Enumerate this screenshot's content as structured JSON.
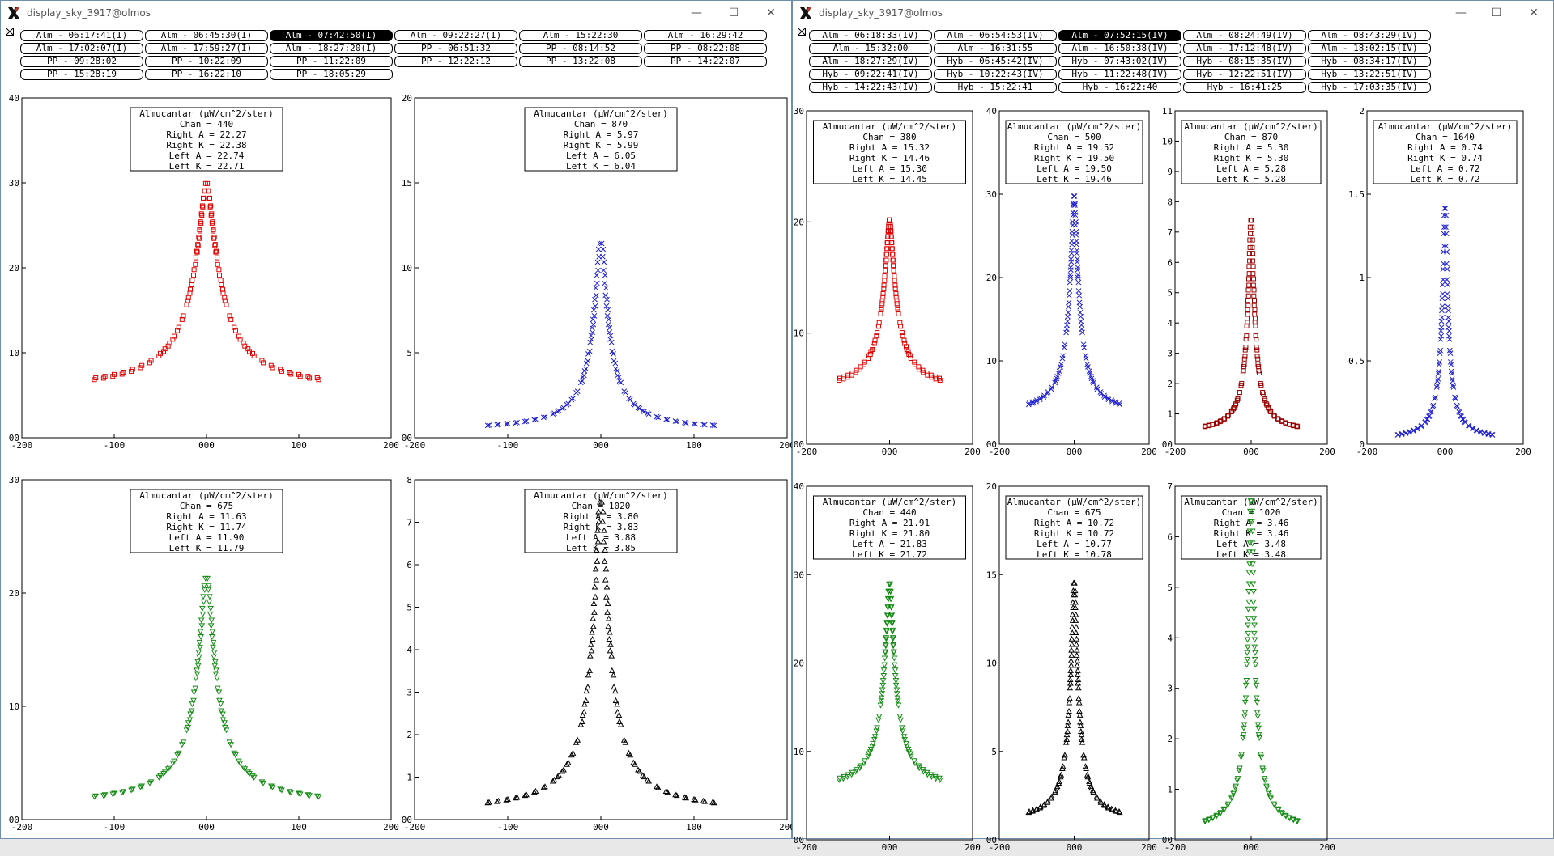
{
  "windows": [
    {
      "title": "display_sky_3917@olmos",
      "button_rows": [
        [
          "Alm - 06:17:41(I)",
          "Alm - 06:45:30(I)",
          "Alm - 07:42:50(I)",
          "Alm - 09:22:27(I)",
          "Alm - 15:22:30",
          "Alm - 16:29:42"
        ],
        [
          "Alm - 17:02:07(I)",
          "Alm - 17:59:27(I)",
          "Alm - 18:27:20(I)",
          "PP - 06:51:32",
          "PP - 08:14:52",
          "PP - 08:22:08"
        ],
        [
          "PP - 09:28:02",
          "PP - 10:22:09",
          "PP - 11:22:09",
          "PP - 12:22:12",
          "PP - 13:22:08",
          "PP - 14:22:07"
        ],
        [
          "PP - 15:28:19",
          "PP - 16:22:10",
          "PP - 18:05:29"
        ]
      ],
      "selected_button": "Alm - 07:42:50(I)",
      "plots": [
        {
          "legend_title": "Almucantar (µW/cm^2/ster)",
          "chan": "Chan = 440",
          "lines": [
            "Right A = 22.27",
            "Right K = 22.38",
            "Left A = 22.74",
            "Left K = 22.71"
          ]
        },
        {
          "legend_title": "Almucantar (µW/cm^2/ster)",
          "chan": "Chan = 870",
          "lines": [
            "Right A = 5.97",
            "Right K = 5.99",
            "Left A = 6.05",
            "Left K = 6.04"
          ]
        },
        {
          "legend_title": "Almucantar (µW/cm^2/ster)",
          "chan": "Chan = 675",
          "lines": [
            "Right A = 11.63",
            "Right K = 11.74",
            "Left A = 11.90",
            "Left K = 11.79"
          ]
        },
        {
          "legend_title": "Almucantar (µW/cm^2/ster)",
          "chan": "Chan = 1020",
          "lines": [
            "Right A = 3.80",
            "Right K = 3.83",
            "Left A = 3.88",
            "Left K = 3.85"
          ]
        }
      ]
    },
    {
      "title": "display_sky_3917@olmos",
      "button_rows": [
        [
          "Alm - 06:18:33(IV)",
          "Alm - 06:54:53(IV)",
          "Alm - 07:52:15(IV)",
          "Alm - 08:24:49(IV)",
          "Alm - 08:43:29(IV)"
        ],
        [
          "Alm - 15:32:00",
          "Alm - 16:31:55",
          "Alm - 16:50:38(IV)",
          "Alm - 17:12:48(IV)",
          "Alm - 18:02:15(IV)"
        ],
        [
          "Alm - 18:27:29(IV)",
          "Hyb - 06:45:42(IV)",
          "Hyb - 07:43:02(IV)",
          "Hyb - 08:15:35(IV)",
          "Hyb - 08:34:17(IV)"
        ],
        [
          "Hyb - 09:22:41(IV)",
          "Hyb - 10:22:43(IV)",
          "Hyb - 11:22:48(IV)",
          "Hyb - 12:22:51(IV)",
          "Hyb - 13:22:51(IV)"
        ],
        [
          "Hyb - 14:22:43(IV)",
          "Hyb - 15:22:41",
          "Hyb - 16:22:40",
          "Hyb - 16:41:25",
          "Hyb - 17:03:35(IV)"
        ]
      ],
      "selected_button": "Alm - 07:52:15(IV)",
      "plots": [
        {
          "legend_title": "Almucantar (µW/cm^2/ster)",
          "chan": "Chan = 380",
          "lines": [
            "Right A = 15.32",
            "Right K = 14.46",
            "Left A = 15.30",
            "Left K = 14.45"
          ]
        },
        {
          "legend_title": "Almucantar (µW/cm^2/ster)",
          "chan": "Chan = 500",
          "lines": [
            "Right A = 19.52",
            "Right K = 19.50",
            "Left A = 19.50",
            "Left K = 19.46"
          ]
        },
        {
          "legend_title": "Almucantar (µW/cm^2/ster)",
          "chan": "Chan = 870",
          "lines": [
            "Right A = 5.30",
            "Right K = 5.30",
            "Left A = 5.28",
            "Left K = 5.28"
          ]
        },
        {
          "legend_title": "Almucantar (µW/cm^2/ster)",
          "chan": "Chan = 1640",
          "lines": [
            "Right A = 0.74",
            "Right K = 0.74",
            "Left A = 0.72",
            "Left K = 0.72"
          ]
        },
        {
          "legend_title": "Almucantar (µW/cm^2/ster)",
          "chan": "Chan = 440",
          "lines": [
            "Right A = 21.91",
            "Right K = 21.80",
            "Left A = 21.83",
            "Left K = 21.72"
          ]
        },
        {
          "legend_title": "Almucantar (µW/cm^2/ster)",
          "chan": "Chan = 675",
          "lines": [
            "Right A = 10.72",
            "Right K = 10.72",
            "Left A = 10.77",
            "Left K = 10.78"
          ]
        },
        {
          "legend_title": "Almucantar (µW/cm^2/ster)",
          "chan": "Chan = 1020",
          "lines": [
            "Right A = 3.46",
            "Right K = 3.46",
            "Left A = 3.48",
            "Left K = 3.48"
          ]
        }
      ]
    }
  ],
  "colors": {
    "red": "#e00000",
    "blue": "#2020d0",
    "green": "#138a13",
    "black": "#000000",
    "darkred": "#990000"
  },
  "chart_data": [
    {
      "type": "scatter",
      "window": 0,
      "xlim": [
        -200,
        200
      ],
      "ylim": [
        0,
        40
      ],
      "xticks": [
        -200,
        -100,
        0,
        100,
        200
      ],
      "xtick_labels": [
        "-200",
        "-100",
        "000",
        "100",
        "200"
      ],
      "yticks": [
        0,
        10,
        20,
        30,
        40
      ],
      "ytick_labels": [
        "00",
        "10",
        "20",
        "30",
        "40"
      ],
      "peak": 30.5,
      "base": 5.5,
      "width": 16,
      "marker": "square",
      "color": "red"
    },
    {
      "type": "scatter",
      "window": 0,
      "xlim": [
        -200,
        200
      ],
      "ylim": [
        0,
        20
      ],
      "xticks": [
        -200,
        -100,
        0,
        100,
        200
      ],
      "xtick_labels": [
        "-200",
        "-100",
        "000",
        "100",
        "200"
      ],
      "yticks": [
        0,
        5,
        10,
        15,
        20
      ],
      "ytick_labels": [
        "00",
        "5",
        "10",
        "15",
        "20"
      ],
      "peak": 12.0,
      "base": 0.4,
      "width": 9,
      "marker": "x",
      "color": "blue"
    },
    {
      "type": "scatter",
      "window": 0,
      "xlim": [
        -200,
        200
      ],
      "ylim": [
        0,
        30
      ],
      "xticks": [
        -200,
        -100,
        0,
        100,
        200
      ],
      "xtick_labels": [
        "-200",
        "-100",
        "000",
        "100",
        "200"
      ],
      "yticks": [
        0,
        10,
        20,
        30
      ],
      "ytick_labels": [
        "00",
        "10",
        "20",
        "30"
      ],
      "peak": 22.0,
      "base": 1.2,
      "width": 12,
      "marker": "tri-down",
      "color": "green"
    },
    {
      "type": "scatter",
      "window": 0,
      "xlim": [
        -200,
        200
      ],
      "ylim": [
        0,
        8
      ],
      "xticks": [
        -200,
        -100,
        0,
        100,
        200
      ],
      "xtick_labels": [
        "-200",
        "-100",
        "000",
        "100",
        "200"
      ],
      "yticks": [
        0,
        1,
        2,
        3,
        4,
        5,
        6,
        7,
        8
      ],
      "ytick_labels": [
        "00",
        "1",
        "2",
        "3",
        "4",
        "5",
        "6",
        "7",
        "8"
      ],
      "peak": 7.8,
      "base": 0.15,
      "width": 10,
      "marker": "tri-up",
      "color": "black"
    },
    {
      "type": "scatter",
      "window": 1,
      "xlim": [
        -200,
        200
      ],
      "ylim": [
        0,
        30
      ],
      "xticks": [
        -200,
        0,
        200
      ],
      "xtick_labels": [
        "-200",
        "000",
        "200"
      ],
      "yticks": [
        0,
        10,
        20,
        30
      ],
      "ytick_labels": [
        "00",
        "10",
        "20",
        "30"
      ],
      "peak": 20.5,
      "base": 4.8,
      "width": 18,
      "marker": "square",
      "color": "red"
    },
    {
      "type": "scatter",
      "window": 1,
      "xlim": [
        -200,
        200
      ],
      "ylim": [
        0,
        40
      ],
      "xticks": [
        -200,
        0,
        200
      ],
      "xtick_labels": [
        "-200",
        "000",
        "200"
      ],
      "yticks": [
        0,
        10,
        20,
        30,
        40
      ],
      "ytick_labels": [
        "00",
        "10",
        "20",
        "30",
        "40"
      ],
      "peak": 30.5,
      "base": 3.5,
      "width": 14,
      "marker": "x",
      "color": "blue"
    },
    {
      "type": "scatter",
      "window": 1,
      "xlim": [
        -200,
        200
      ],
      "ylim": [
        0,
        11
      ],
      "xticks": [
        -200,
        0,
        200
      ],
      "xtick_labels": [
        "-200",
        "000",
        "200"
      ],
      "yticks": [
        0,
        1,
        2,
        3,
        4,
        5,
        6,
        7,
        8,
        9,
        10,
        11
      ],
      "ytick_labels": [
        "00",
        "1",
        "2",
        "3",
        "4",
        "5",
        "6",
        "7",
        "8",
        "9",
        "10",
        "11"
      ],
      "peak": 7.7,
      "base": 0.35,
      "width": 10,
      "marker": "square",
      "color": "darkred"
    },
    {
      "type": "scatter",
      "window": 1,
      "xlim": [
        -200,
        200
      ],
      "ylim": [
        0,
        2
      ],
      "xticks": [
        -200,
        0,
        200
      ],
      "xtick_labels": [
        "-200",
        "000",
        "200"
      ],
      "yticks": [
        0,
        0.5,
        1,
        1.5,
        2
      ],
      "ytick_labels": [
        "0",
        "0.5",
        "1",
        "1.5",
        "2"
      ],
      "peak": 1.5,
      "base": 0.02,
      "width": 8,
      "marker": "x",
      "color": "blue"
    },
    {
      "type": "scatter",
      "window": 1,
      "xlim": [
        -200,
        200
      ],
      "ylim": [
        0,
        40
      ],
      "xticks": [
        -200,
        0,
        200
      ],
      "xtick_labels": [
        "-200",
        "000",
        "200"
      ],
      "yticks": [
        0,
        10,
        20,
        30,
        40
      ],
      "ytick_labels": [
        "00",
        "10",
        "20",
        "30",
        "40"
      ],
      "peak": 29.5,
      "base": 5.5,
      "width": 16,
      "marker": "tri-down",
      "color": "green"
    },
    {
      "type": "scatter",
      "window": 1,
      "xlim": [
        -200,
        200
      ],
      "ylim": [
        0,
        20
      ],
      "xticks": [
        -200,
        0,
        200
      ],
      "xtick_labels": [
        "-200",
        "000",
        "200"
      ],
      "yticks": [
        0,
        5,
        10,
        15,
        20
      ],
      "ytick_labels": [
        "00",
        "5",
        "10",
        "15",
        "20"
      ],
      "peak": 15.0,
      "base": 1.0,
      "width": 12,
      "marker": "tri-up",
      "color": "black"
    },
    {
      "type": "scatter",
      "window": 1,
      "xlim": [
        -200,
        200
      ],
      "ylim": [
        0,
        7
      ],
      "xticks": [
        -200,
        0,
        200
      ],
      "xtick_labels": [
        "-200",
        "000",
        "200"
      ],
      "yticks": [
        0,
        1,
        2,
        3,
        4,
        5,
        6,
        7
      ],
      "ytick_labels": [
        "00",
        "1",
        "2",
        "3",
        "4",
        "5",
        "6",
        "7"
      ],
      "peak": 7.0,
      "base": 0.15,
      "width": 10,
      "marker": "tri-down",
      "color": "green"
    }
  ]
}
